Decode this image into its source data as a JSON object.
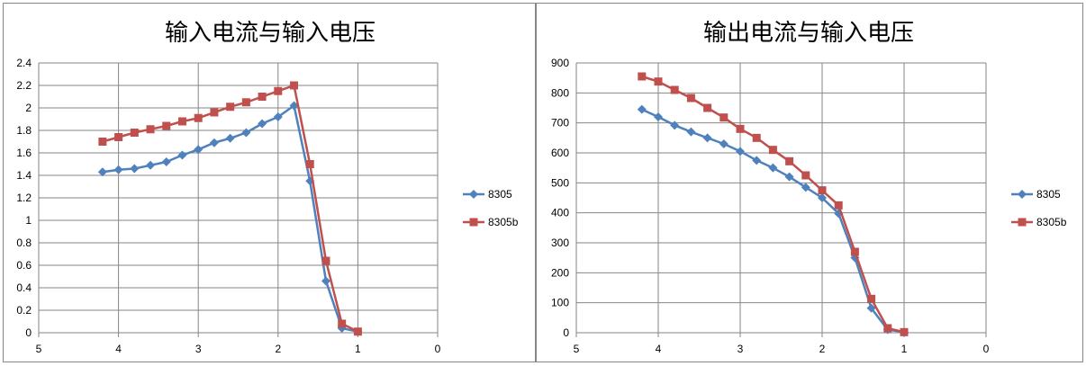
{
  "chart_data": [
    {
      "type": "line",
      "title": "输入电流与输入电压",
      "xlabel": "",
      "ylabel": "",
      "xlim": [
        5,
        0
      ],
      "ylim": [
        0,
        2.4
      ],
      "xticks": [
        "5",
        "4",
        "3",
        "2",
        "1",
        "0"
      ],
      "yticks": [
        "0",
        "0.2",
        "0.4",
        "0.6",
        "0.8",
        "1",
        "1.2",
        "1.4",
        "1.6",
        "1.8",
        "2",
        "2.2",
        "2.4"
      ],
      "grid": true,
      "legend": "right",
      "series": [
        {
          "name": "8305",
          "color": "#4F81BD",
          "marker": "diamond",
          "x": [
            4.2,
            4.0,
            3.8,
            3.6,
            3.4,
            3.2,
            3.0,
            2.8,
            2.6,
            2.4,
            2.2,
            2.0,
            1.8,
            1.6,
            1.4,
            1.2,
            1.0
          ],
          "y": [
            1.43,
            1.45,
            1.46,
            1.49,
            1.52,
            1.58,
            1.63,
            1.69,
            1.73,
            1.78,
            1.86,
            1.92,
            2.02,
            1.35,
            0.46,
            0.04,
            0.01
          ]
        },
        {
          "name": "8305b",
          "color": "#C0504D",
          "marker": "square",
          "x": [
            4.2,
            4.0,
            3.8,
            3.6,
            3.4,
            3.2,
            3.0,
            2.8,
            2.6,
            2.4,
            2.2,
            2.0,
            1.8,
            1.6,
            1.4,
            1.2,
            1.0
          ],
          "y": [
            1.7,
            1.74,
            1.78,
            1.81,
            1.84,
            1.88,
            1.91,
            1.96,
            2.01,
            2.05,
            2.1,
            2.15,
            2.2,
            1.5,
            0.64,
            0.08,
            0.01
          ]
        }
      ]
    },
    {
      "type": "line",
      "title": "输出电流与输入电压",
      "xlabel": "",
      "ylabel": "",
      "xlim": [
        5,
        0
      ],
      "ylim": [
        0,
        900
      ],
      "xticks": [
        "5",
        "4",
        "3",
        "2",
        "1",
        "0"
      ],
      "yticks": [
        "0",
        "100",
        "200",
        "300",
        "400",
        "500",
        "600",
        "700",
        "800",
        "900"
      ],
      "grid": true,
      "legend": "right",
      "series": [
        {
          "name": "8305",
          "color": "#4F81BD",
          "marker": "diamond",
          "x": [
            4.2,
            4.0,
            3.8,
            3.6,
            3.4,
            3.2,
            3.0,
            2.8,
            2.6,
            2.4,
            2.2,
            2.0,
            1.8,
            1.6,
            1.4,
            1.2,
            1.0
          ],
          "y": [
            745,
            720,
            692,
            670,
            650,
            630,
            605,
            575,
            550,
            520,
            485,
            450,
            398,
            250,
            82,
            10,
            2
          ]
        },
        {
          "name": "8305b",
          "color": "#C0504D",
          "marker": "square",
          "x": [
            4.2,
            4.0,
            3.8,
            3.6,
            3.4,
            3.2,
            3.0,
            2.8,
            2.6,
            2.4,
            2.2,
            2.0,
            1.8,
            1.6,
            1.4,
            1.2,
            1.0
          ],
          "y": [
            855,
            838,
            810,
            783,
            750,
            718,
            680,
            650,
            610,
            572,
            525,
            475,
            425,
            270,
            113,
            15,
            2
          ]
        }
      ]
    }
  ]
}
